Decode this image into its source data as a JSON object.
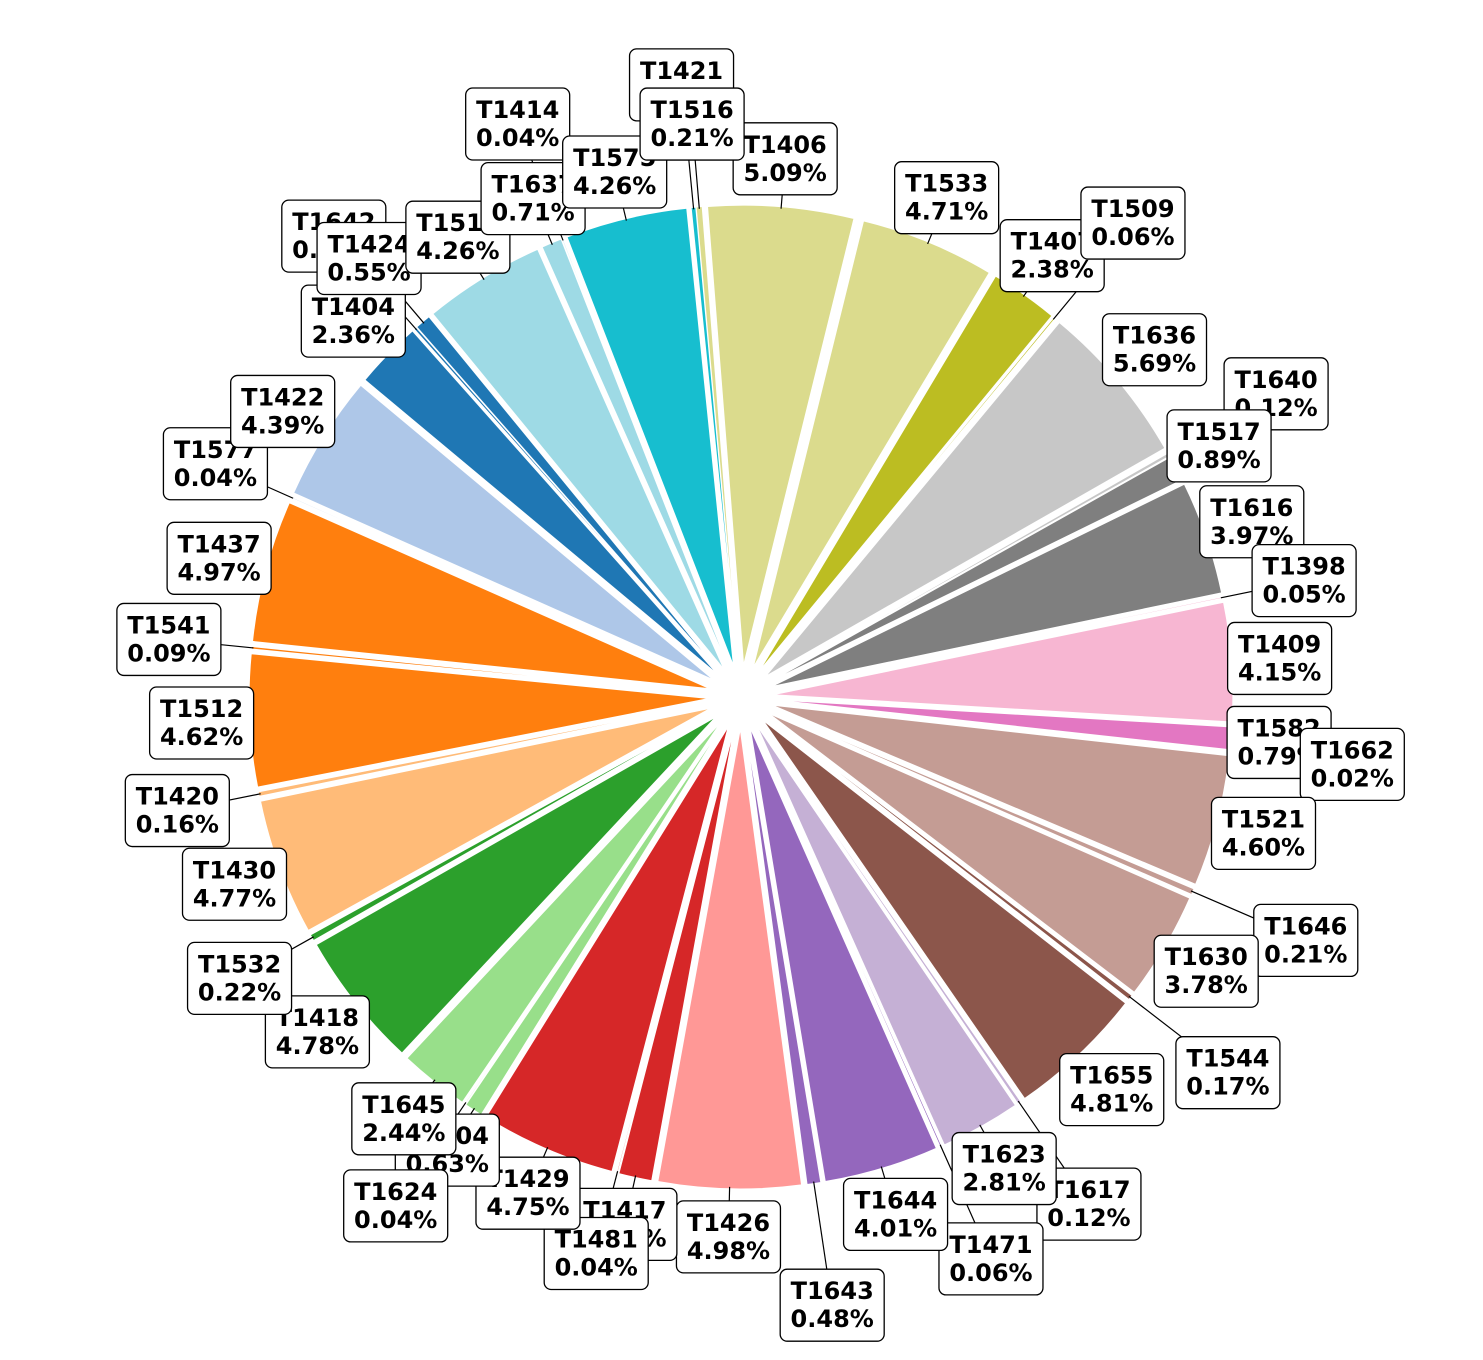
{
  "chart_data": {
    "type": "pie",
    "title": "",
    "value_format": "percent",
    "slices": [
      {
        "label": "T1406",
        "value": 5.09,
        "color": "#dbdb8d"
      },
      {
        "label": "T1533",
        "value": 4.71,
        "color": "#dbdb8d"
      },
      {
        "label": "T1407",
        "value": 2.38,
        "color": "#bcbd22"
      },
      {
        "label": "T1509",
        "value": 0.06,
        "color": "#bcbd22"
      },
      {
        "label": "T1636",
        "value": 5.69,
        "color": "#c7c7c7"
      },
      {
        "label": "T1640",
        "value": 0.12,
        "color": "#c7c7c7"
      },
      {
        "label": "T1517",
        "value": 0.89,
        "color": "#7f7f7f"
      },
      {
        "label": "T1616",
        "value": 3.97,
        "color": "#7f7f7f"
      },
      {
        "label": "T1398",
        "value": 0.05,
        "color": "#f7b6d2"
      },
      {
        "label": "T1409",
        "value": 4.15,
        "color": "#f7b6d2"
      },
      {
        "label": "T1582",
        "value": 0.79,
        "color": "#e377c2"
      },
      {
        "label": "T1662",
        "value": 0.02,
        "color": "#e377c2"
      },
      {
        "label": "T1521",
        "value": 4.6,
        "color": "#c49c94"
      },
      {
        "label": "T1646",
        "value": 0.21,
        "color": "#c49c94"
      },
      {
        "label": "T1630",
        "value": 3.78,
        "color": "#c49c94"
      },
      {
        "label": "T1544",
        "value": 0.17,
        "color": "#8c564b"
      },
      {
        "label": "T1655",
        "value": 4.81,
        "color": "#8c564b"
      },
      {
        "label": "T1617",
        "value": 0.12,
        "color": "#c5b0d5"
      },
      {
        "label": "T1623",
        "value": 2.81,
        "color": "#c5b0d5"
      },
      {
        "label": "T1471",
        "value": 0.06,
        "color": "#9467bd"
      },
      {
        "label": "T1644",
        "value": 4.01,
        "color": "#9467bd"
      },
      {
        "label": "T1643",
        "value": 0.48,
        "color": "#9467bd"
      },
      {
        "label": "T1426",
        "value": 4.98,
        "color": "#ff9896"
      },
      {
        "label": "T1417",
        "value": 1.16,
        "color": "#d62728"
      },
      {
        "label": "T1481",
        "value": 0.04,
        "color": "#d62728"
      },
      {
        "label": "T1429",
        "value": 4.75,
        "color": "#d62728"
      },
      {
        "label": "T1604",
        "value": 0.63,
        "color": "#98df8a"
      },
      {
        "label": "T1624",
        "value": 0.04,
        "color": "#98df8a"
      },
      {
        "label": "T1645",
        "value": 2.44,
        "color": "#98df8a"
      },
      {
        "label": "T1418",
        "value": 4.78,
        "color": "#2ca02c"
      },
      {
        "label": "T1532",
        "value": 0.22,
        "color": "#2ca02c"
      },
      {
        "label": "T1430",
        "value": 4.77,
        "color": "#ffbb78"
      },
      {
        "label": "T1420",
        "value": 0.16,
        "color": "#ffbb78"
      },
      {
        "label": "T1512",
        "value": 4.62,
        "color": "#ff7f0e"
      },
      {
        "label": "T1541",
        "value": 0.09,
        "color": "#ff7f0e"
      },
      {
        "label": "T1437",
        "value": 4.97,
        "color": "#ff7f0e"
      },
      {
        "label": "T1577",
        "value": 0.04,
        "color": "#aec7e8"
      },
      {
        "label": "T1422",
        "value": 4.39,
        "color": "#aec7e8"
      },
      {
        "label": "T1404",
        "value": 2.36,
        "color": "#1f77b4"
      },
      {
        "label": "T1642",
        "value": 0.09,
        "color": "#1f77b4"
      },
      {
        "label": "T1424",
        "value": 0.55,
        "color": "#1f77b4"
      },
      {
        "label": "T1513",
        "value": 4.26,
        "color": "#9edae5"
      },
      {
        "label": "T1637",
        "value": 0.71,
        "color": "#9edae5"
      },
      {
        "label": "T1414",
        "value": 0.04,
        "color": "#9edae5"
      },
      {
        "label": "T1575",
        "value": 4.26,
        "color": "#17becf"
      },
      {
        "label": "T1421",
        "value": 0.16,
        "color": "#17becf"
      },
      {
        "label": "T1516",
        "value": 0.21,
        "color": "#dbdb8d"
      }
    ]
  }
}
